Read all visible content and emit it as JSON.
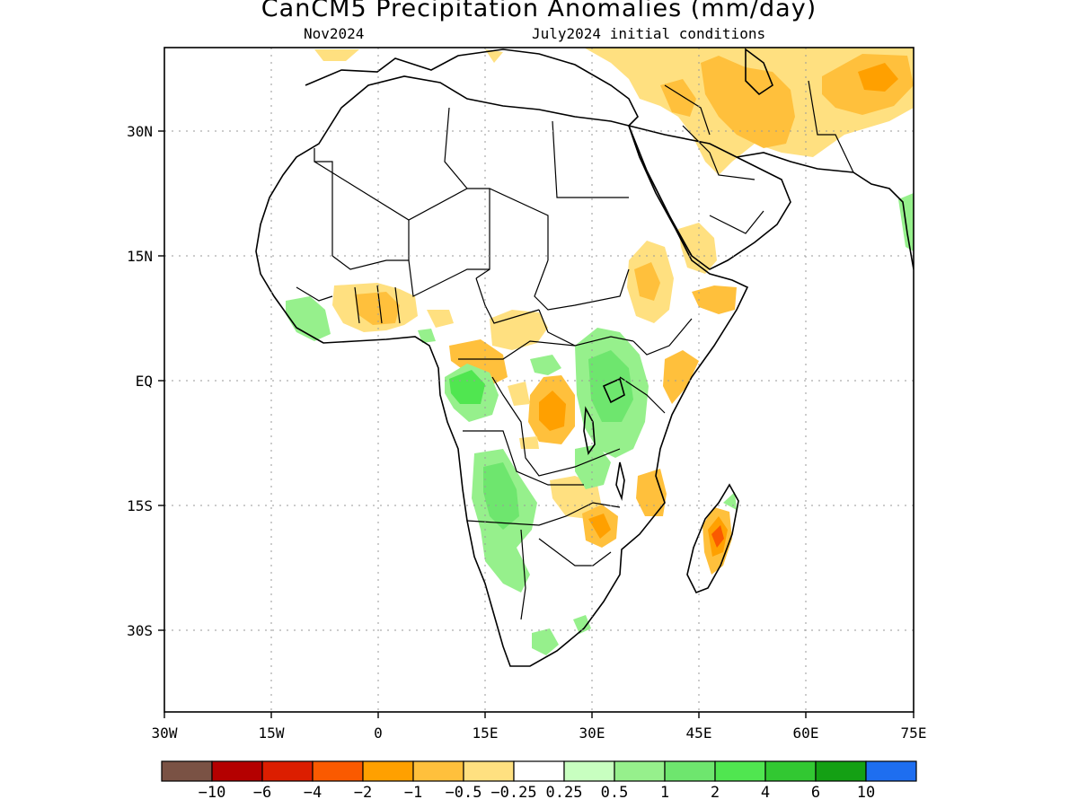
{
  "header": {
    "title": "CanCM5 Precipitation Anomalies (mm/day)",
    "valid_period": "Nov2024",
    "initial_conditions": "July2024 initial conditions"
  },
  "axes": {
    "x_ticks": [
      "30W",
      "15W",
      "0",
      "15E",
      "30E",
      "45E",
      "60E",
      "75E"
    ],
    "y_ticks": [
      "30N",
      "15N",
      "EQ",
      "15S",
      "30S"
    ],
    "lon_range": [
      -30,
      75
    ],
    "lat_range": [
      -40,
      40
    ],
    "grid": "dotted"
  },
  "colorbar": {
    "labels": [
      "-10",
      "-6",
      "-4",
      "-2",
      "-1",
      "-0.5",
      "-0.25",
      "0.25",
      "0.5",
      "1",
      "2",
      "4",
      "6",
      "10"
    ],
    "colors": [
      "#7a5244",
      "#b40000",
      "#dc1e00",
      "#fa5a00",
      "#ffa000",
      "#ffc03c",
      "#ffe080",
      "#ffffff",
      "#c8ffc0",
      "#96f08c",
      "#6ee66e",
      "#50e650",
      "#32c832",
      "#14a014",
      "#1e6ef0"
    ]
  },
  "map": {
    "dry_color": "#ffe080",
    "dry_mid_color": "#ffc03c",
    "dry_strong_color": "#ffa000",
    "dry_max_color": "#fa5a00",
    "wet_color": "#96f08c",
    "wet_mid_color": "#6ee66e",
    "wet_strong_color": "#50e650"
  }
}
